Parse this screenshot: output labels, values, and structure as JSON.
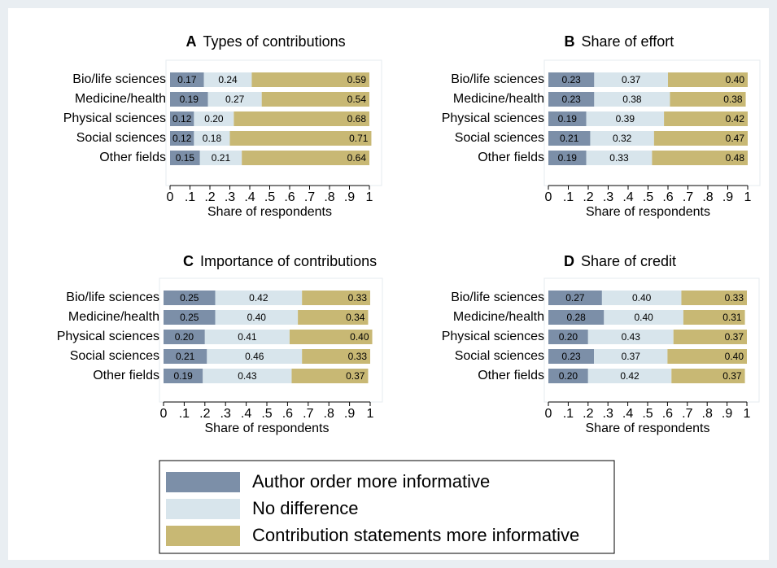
{
  "chart_data": [
    {
      "type": "stacked-bar",
      "panel": "A",
      "title": "Types of contributions",
      "xlabel": "Share of respondents",
      "categories": [
        "Bio/life sciences",
        "Medicine/health",
        "Physical sciences",
        "Social sciences",
        "Other fields"
      ],
      "series": [
        {
          "name": "Author order more informative",
          "color": "#7c8fa8",
          "values": [
            0.17,
            0.19,
            0.12,
            0.12,
            0.15
          ],
          "value_labels": [
            "0.17",
            "0.19",
            "0.12",
            "0.12",
            "0.15"
          ]
        },
        {
          "name": "No difference",
          "color": "#d8e5ec",
          "values": [
            0.24,
            0.27,
            0.2,
            0.18,
            0.21
          ],
          "value_labels": [
            "0.24",
            "0.27",
            "0.20",
            "0.18",
            "0.21"
          ]
        },
        {
          "name": "Contribution statements more informative",
          "color": "#c8b874",
          "values": [
            0.59,
            0.54,
            0.68,
            0.71,
            0.64
          ],
          "value_labels": [
            "0.59",
            "0.54",
            "0.68",
            "0.71",
            "0.64"
          ]
        }
      ],
      "xlim": [
        0,
        1
      ],
      "xticks": [
        0,
        {
          "value": 0.1,
          "label": ".1"
        },
        {
          "value": 0.2,
          "label": ".2"
        },
        {
          "value": 0.3,
          "label": ".3"
        },
        {
          "value": 0.4,
          "label": ".4"
        },
        {
          "value": 0.5,
          "label": ".5"
        },
        {
          "value": 0.6,
          "label": ".6"
        },
        {
          "value": 0.7,
          "label": ".7"
        },
        {
          "value": 0.8,
          "label": ".8"
        },
        {
          "value": 0.9,
          "label": ".9"
        },
        1
      ]
    },
    {
      "type": "stacked-bar",
      "panel": "B",
      "title": "Share of effort",
      "xlabel": "Share of respondents",
      "categories": [
        "Bio/life sciences",
        "Medicine/health",
        "Physical sciences",
        "Social sciences",
        "Other fields"
      ],
      "series": [
        {
          "name": "Author order more informative",
          "color": "#7c8fa8",
          "values": [
            0.23,
            0.23,
            0.19,
            0.21,
            0.19
          ],
          "value_labels": [
            "0.23",
            "0.23",
            "0.19",
            "0.21",
            "0.19"
          ]
        },
        {
          "name": "No difference",
          "color": "#d8e5ec",
          "values": [
            0.37,
            0.38,
            0.39,
            0.32,
            0.33
          ],
          "value_labels": [
            "0.37",
            "0.38",
            "0.39",
            "0.32",
            "0.33"
          ]
        },
        {
          "name": "Contribution statements more informative",
          "color": "#c8b874",
          "values": [
            0.4,
            0.38,
            0.42,
            0.47,
            0.48
          ],
          "value_labels": [
            "0.40",
            "0.38",
            "0.42",
            "0.47",
            "0.48"
          ]
        }
      ],
      "xlim": [
        0,
        1
      ],
      "xticks": [
        0,
        {
          "value": 0.1,
          "label": ".1"
        },
        {
          "value": 0.2,
          "label": ".2"
        },
        {
          "value": 0.3,
          "label": ".3"
        },
        {
          "value": 0.4,
          "label": ".4"
        },
        {
          "value": 0.5,
          "label": ".5"
        },
        {
          "value": 0.6,
          "label": ".6"
        },
        {
          "value": 0.7,
          "label": ".7"
        },
        {
          "value": 0.8,
          "label": ".8"
        },
        {
          "value": 0.9,
          "label": ".9"
        },
        1
      ]
    },
    {
      "type": "stacked-bar",
      "panel": "C",
      "title": "Importance of contributions",
      "xlabel": "Share of respondents",
      "categories": [
        "Bio/life sciences",
        "Medicine/health",
        "Physical sciences",
        "Social sciences",
        "Other fields"
      ],
      "series": [
        {
          "name": "Author order more informative",
          "color": "#7c8fa8",
          "values": [
            0.25,
            0.25,
            0.2,
            0.21,
            0.19
          ],
          "value_labels": [
            "0.25",
            "0.25",
            "0.20",
            "0.21",
            "0.19"
          ]
        },
        {
          "name": "No difference",
          "color": "#d8e5ec",
          "values": [
            0.42,
            0.4,
            0.41,
            0.46,
            0.43
          ],
          "value_labels": [
            "0.42",
            "0.40",
            "0.41",
            "0.46",
            "0.43"
          ]
        },
        {
          "name": "Contribution statements more informative",
          "color": "#c8b874",
          "values": [
            0.33,
            0.34,
            0.4,
            0.33,
            0.37
          ],
          "value_labels": [
            "0.33",
            "0.34",
            "0.40",
            "0.33",
            "0.37"
          ]
        }
      ],
      "xlim": [
        0,
        1
      ],
      "xticks": [
        0,
        {
          "value": 0.1,
          "label": ".1"
        },
        {
          "value": 0.2,
          "label": ".2"
        },
        {
          "value": 0.3,
          "label": ".3"
        },
        {
          "value": 0.4,
          "label": ".4"
        },
        {
          "value": 0.5,
          "label": ".5"
        },
        {
          "value": 0.6,
          "label": ".6"
        },
        {
          "value": 0.7,
          "label": ".7"
        },
        {
          "value": 0.8,
          "label": ".8"
        },
        {
          "value": 0.9,
          "label": ".9"
        },
        1
      ]
    },
    {
      "type": "stacked-bar",
      "panel": "D",
      "title": "Share of credit",
      "xlabel": "Share of respondents",
      "categories": [
        "Bio/life sciences",
        "Medicine/health",
        "Physical sciences",
        "Social sciences",
        "Other fields"
      ],
      "series": [
        {
          "name": "Author order more informative",
          "color": "#7c8fa8",
          "values": [
            0.27,
            0.28,
            0.2,
            0.23,
            0.2
          ],
          "value_labels": [
            "0.27",
            "0.28",
            "0.20",
            "0.23",
            "0.20"
          ]
        },
        {
          "name": "No difference",
          "color": "#d8e5ec",
          "values": [
            0.4,
            0.4,
            0.43,
            0.37,
            0.42
          ],
          "value_labels": [
            "0.40",
            "0.40",
            "0.43",
            "0.37",
            "0.42"
          ]
        },
        {
          "name": "Contribution statements more informative",
          "color": "#c8b874",
          "values": [
            0.33,
            0.31,
            0.37,
            0.4,
            0.37
          ],
          "value_labels": [
            "0.33",
            "0.31",
            "0.37",
            "0.40",
            "0.37"
          ]
        }
      ],
      "xlim": [
        0,
        1
      ],
      "xticks": [
        0,
        {
          "value": 0.1,
          "label": ".1"
        },
        {
          "value": 0.2,
          "label": ".2"
        },
        {
          "value": 0.3,
          "label": ".3"
        },
        {
          "value": 0.4,
          "label": ".4"
        },
        {
          "value": 0.5,
          "label": ".5"
        },
        {
          "value": 0.6,
          "label": ".6"
        },
        {
          "value": 0.7,
          "label": ".7"
        },
        {
          "value": 0.8,
          "label": ".8"
        },
        {
          "value": 0.9,
          "label": ".9"
        },
        1
      ]
    }
  ]
}
